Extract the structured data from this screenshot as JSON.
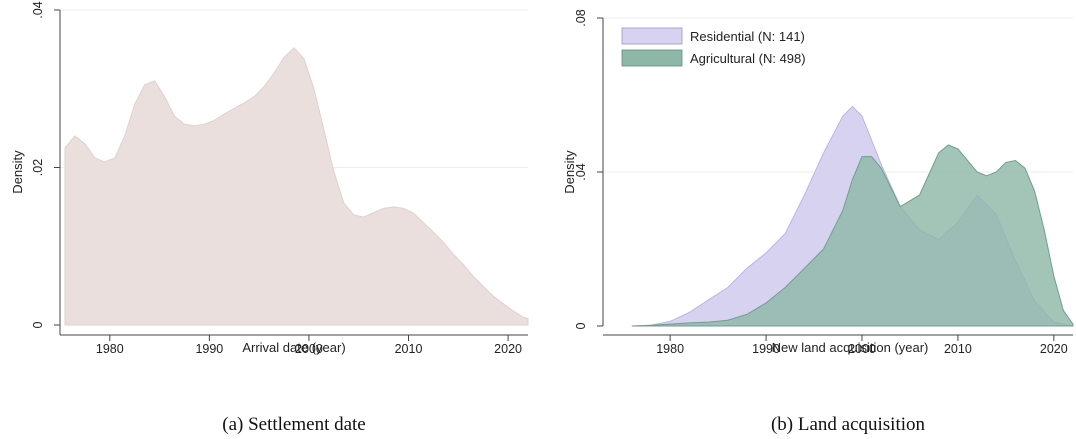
{
  "chart_data": [
    {
      "type": "area",
      "caption": "(a) Settlement date",
      "xlabel": "Arrival date (year)",
      "ylabel": "Density",
      "xlim": [
        1975,
        2022
      ],
      "ylim": [
        0,
        0.04
      ],
      "xticks": [
        {
          "value": 1980,
          "label": "1980"
        },
        {
          "value": 1990,
          "label": "1990"
        },
        {
          "value": 2000,
          "label": "2000"
        },
        {
          "value": 2010,
          "label": "2010"
        },
        {
          "value": 2020,
          "label": "2020"
        }
      ],
      "yticks": [
        {
          "value": 0,
          "label": "0"
        },
        {
          "value": 0.02,
          "label": ".02"
        },
        {
          "value": 0.04,
          "label": ".04"
        }
      ],
      "grid": true,
      "series": [
        {
          "color": "#eadfdc",
          "x": [
            1975.5,
            1976.5,
            1977.5,
            1978.5,
            1979.5,
            1980.5,
            1981.5,
            1982.5,
            1983.5,
            1984.5,
            1985.5,
            1986.5,
            1987.5,
            1988.5,
            1989.5,
            1990.5,
            1991.5,
            1992.5,
            1993.5,
            1994.5,
            1995.5,
            1996.5,
            1997.5,
            1998.5,
            1999.5,
            2000.5,
            2001.5,
            2002.5,
            2003.5,
            2004.5,
            2005.5,
            2006.5,
            2007.5,
            2008.5,
            2009.5,
            2010.5,
            2011.5,
            2012.5,
            2013.5,
            2014.5,
            2015.5,
            2016.5,
            2017.5,
            2018.5,
            2019.5,
            2020.5,
            2021.5,
            2022
          ],
          "values": [
            0.0225,
            0.024,
            0.023,
            0.0212,
            0.0207,
            0.0212,
            0.024,
            0.028,
            0.0305,
            0.031,
            0.029,
            0.0265,
            0.0255,
            0.0253,
            0.0255,
            0.026,
            0.0268,
            0.0275,
            0.0282,
            0.029,
            0.0303,
            0.032,
            0.034,
            0.0352,
            0.0338,
            0.03,
            0.0248,
            0.0195,
            0.0155,
            0.014,
            0.0137,
            0.0143,
            0.0148,
            0.015,
            0.0148,
            0.0142,
            0.013,
            0.0118,
            0.0105,
            0.009,
            0.0077,
            0.0062,
            0.0049,
            0.0037,
            0.0027,
            0.0018,
            0.001,
            0.0008
          ]
        }
      ]
    },
    {
      "type": "area",
      "caption": "(b) Land acquisition",
      "xlabel": "New land acquisition (year)",
      "ylabel": "Density",
      "xlim": [
        1973,
        2022
      ],
      "ylim": [
        0,
        0.08
      ],
      "xticks": [
        {
          "value": 1980,
          "label": "1980"
        },
        {
          "value": 1990,
          "label": "1990"
        },
        {
          "value": 2000,
          "label": "2000"
        },
        {
          "value": 2010,
          "label": "2010"
        },
        {
          "value": 2020,
          "label": "2020"
        }
      ],
      "yticks": [
        {
          "value": 0,
          "label": "0"
        },
        {
          "value": 0.04,
          "label": ".04"
        },
        {
          "value": 0.08,
          "label": ".08"
        }
      ],
      "grid": true,
      "legend": "top-left",
      "series": [
        {
          "name": "Residential (N: 141)",
          "color": "#d6d2ef",
          "x": [
            1976,
            1978,
            1980,
            1982,
            1984,
            1986,
            1988,
            1990,
            1992,
            1994,
            1996,
            1998,
            1999,
            2000,
            2002,
            2004,
            2006,
            2008,
            2010,
            2012,
            2014,
            2016,
            2018,
            2020,
            2022
          ],
          "values": [
            0,
            0.0002,
            0.0012,
            0.0035,
            0.0068,
            0.01,
            0.015,
            0.019,
            0.024,
            0.034,
            0.045,
            0.0545,
            0.057,
            0.0545,
            0.042,
            0.031,
            0.025,
            0.0225,
            0.027,
            0.034,
            0.029,
            0.017,
            0.0065,
            0.001,
            0
          ]
        },
        {
          "name": "Agricultural (N: 498)",
          "color": "#8db8a8",
          "x": [
            1976,
            1978,
            1980,
            1982,
            1984,
            1986,
            1988,
            1990,
            1992,
            1994,
            1996,
            1998,
            1999,
            2000,
            2001,
            2002,
            2004,
            2006,
            2008,
            2009,
            2010,
            2012,
            2013,
            2014,
            2015,
            2016,
            2017,
            2018,
            2019,
            2020,
            2021,
            2022
          ],
          "values": [
            0,
            0.0002,
            0.0005,
            0.0008,
            0.001,
            0.0015,
            0.003,
            0.006,
            0.01,
            0.015,
            0.02,
            0.03,
            0.038,
            0.044,
            0.044,
            0.041,
            0.031,
            0.034,
            0.045,
            0.047,
            0.046,
            0.04,
            0.039,
            0.04,
            0.0425,
            0.043,
            0.041,
            0.035,
            0.025,
            0.013,
            0.004,
            0.0005
          ]
        }
      ]
    }
  ]
}
